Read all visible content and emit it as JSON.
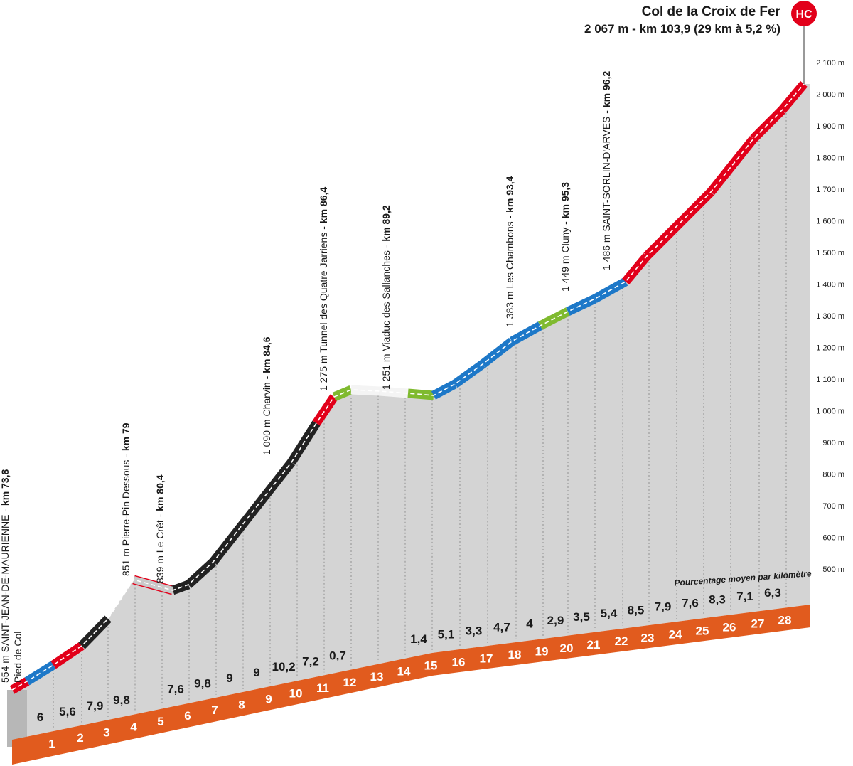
{
  "summit": {
    "name": "Col de la Croix de Fer",
    "info": "2 067 m - km 103,9 (29 km à 5,2 %)",
    "category": "HC",
    "category_color": "#e2001a"
  },
  "legend_text": "Pourcentage moyen par kilomètre",
  "colors": {
    "gray": "#d4d4d4",
    "orange": "#e15b1e",
    "blue": "#1d78c8",
    "green": "#7fba2f",
    "red": "#e2001a",
    "black": "#222222",
    "white_band": "#f2f2f2"
  },
  "chart_data": {
    "type": "area",
    "title": "Col de la Croix de Fer",
    "xlabel": "km",
    "ylabel": "m",
    "y_ticks": [
      "500 m",
      "600 m",
      "700 m",
      "800 m",
      "900 m",
      "1 000 m",
      "1 100 m",
      "1 200 m",
      "1 300 m",
      "1 400 m",
      "1 500 m",
      "1 600 m",
      "1 700 m",
      "1 800 m",
      "1 900 m",
      "2 000 m",
      "2 100 m"
    ],
    "km_markers": [
      1,
      2,
      3,
      4,
      5,
      6,
      7,
      8,
      9,
      10,
      11,
      12,
      13,
      14,
      15,
      16,
      17,
      18,
      19,
      20,
      21,
      22,
      23,
      24,
      25,
      26,
      27,
      28
    ],
    "gradients": [
      "6",
      "5,6",
      "7,9",
      "9,8",
      "",
      "7,6",
      "9,8",
      "9",
      "9",
      "10,2",
      "7,2",
      "0,7",
      "",
      "",
      "1,4",
      "5,1",
      "3,3",
      "4,7",
      "4",
      "2,9",
      "3,5",
      "5,4",
      "8,5",
      "7,9",
      "7,6",
      "8,3",
      "7,1",
      "6,3"
    ],
    "waypoints": [
      {
        "label": "554 m SAINT-JEAN-DE-MAURIENNE - ",
        "km": "km 73,8",
        "sub": "Pied de Col",
        "distance": 0
      },
      {
        "label": "851 m Pierre-Pin Dessous - ",
        "km": "km 79",
        "distance": 4.2
      },
      {
        "label": "839 m Le Crêt - ",
        "km": "km 80,4",
        "distance": 6.1
      },
      {
        "label": "1 090 m Charvin - ",
        "km": "km 84,6",
        "distance": 10.8
      },
      {
        "label": "1 275 m Tunnel des Quatre Jarriens - ",
        "km": "km 86,4",
        "distance": 12.0
      },
      {
        "label": "1 251 m Viaduc des Sallanches - ",
        "km": "km 89,2",
        "distance": 14.9
      },
      {
        "label": "1 383 m Les Chambons - ",
        "km": "km 93,4",
        "distance": 19.0
      },
      {
        "label": "1 449 m Cluny - ",
        "km": "km 95,3",
        "distance": 20.8
      },
      {
        "label": "1 486 m SAINT-SORLIN-D'ARVES - ",
        "km": "km 96,2",
        "distance": 22.1
      }
    ]
  }
}
